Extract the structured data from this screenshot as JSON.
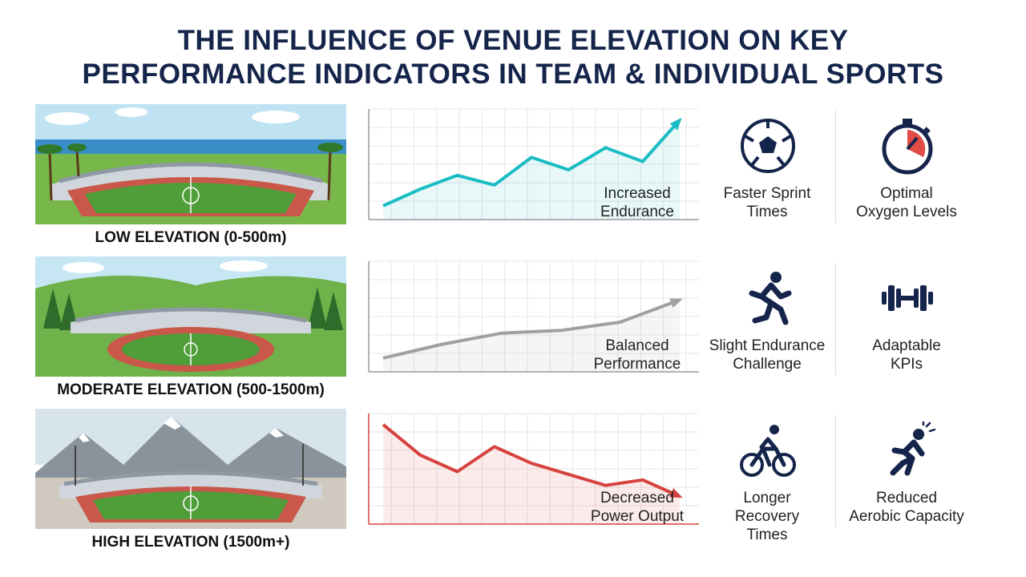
{
  "title": {
    "line1": "THE INFLUENCE OF VENUE ELEVATION ON KEY",
    "line2": "PERFORMANCE INDICATORS IN TEAM & INDIVIDUAL SPORTS"
  },
  "zones": [
    {
      "label": "LOW ELEVATION (0-500m)",
      "trend": "up",
      "trend_color": "#1bbdc4",
      "trend_values": [
        10,
        22,
        32,
        25,
        45,
        36,
        52,
        42,
        72
      ],
      "chart_label_1": "Increased",
      "chart_label_2": "Endurance",
      "kpis": [
        {
          "icon": "soccer-ball-icon",
          "line1": "Faster Sprint",
          "line2": "Times"
        },
        {
          "icon": "stopwatch-icon",
          "line1": "Optimal",
          "line2": "Oxygen Levels"
        }
      ]
    },
    {
      "label": "MODERATE ELEVATION (500-1500m)",
      "trend": "flat-up",
      "trend_color": "#a0a0a0",
      "trend_values": [
        10,
        20,
        28,
        30,
        36,
        52
      ],
      "chart_label_1": "Balanced",
      "chart_label_2": "Performance",
      "kpis": [
        {
          "icon": "runner-icon",
          "line1": "Slight Endurance",
          "line2": "Challenge"
        },
        {
          "icon": "dumbbell-icon",
          "line1": "Adaptable",
          "line2": "KPIs"
        }
      ]
    },
    {
      "label": "HIGH ELEVATION (1500m+)",
      "trend": "down",
      "trend_color": "#d6433f",
      "trend_values": [
        72,
        50,
        38,
        56,
        44,
        36,
        28,
        32,
        20
      ],
      "chart_label_1": "Decreased",
      "chart_label_2": "Power Output",
      "kpis": [
        {
          "icon": "cyclist-icon",
          "line1": "Longer",
          "line2": "Recovery",
          "line3": "Times"
        },
        {
          "icon": "fatigued-runner-icon",
          "line1": "Reduced",
          "line2": "Aerobic Capacity"
        }
      ]
    }
  ]
}
